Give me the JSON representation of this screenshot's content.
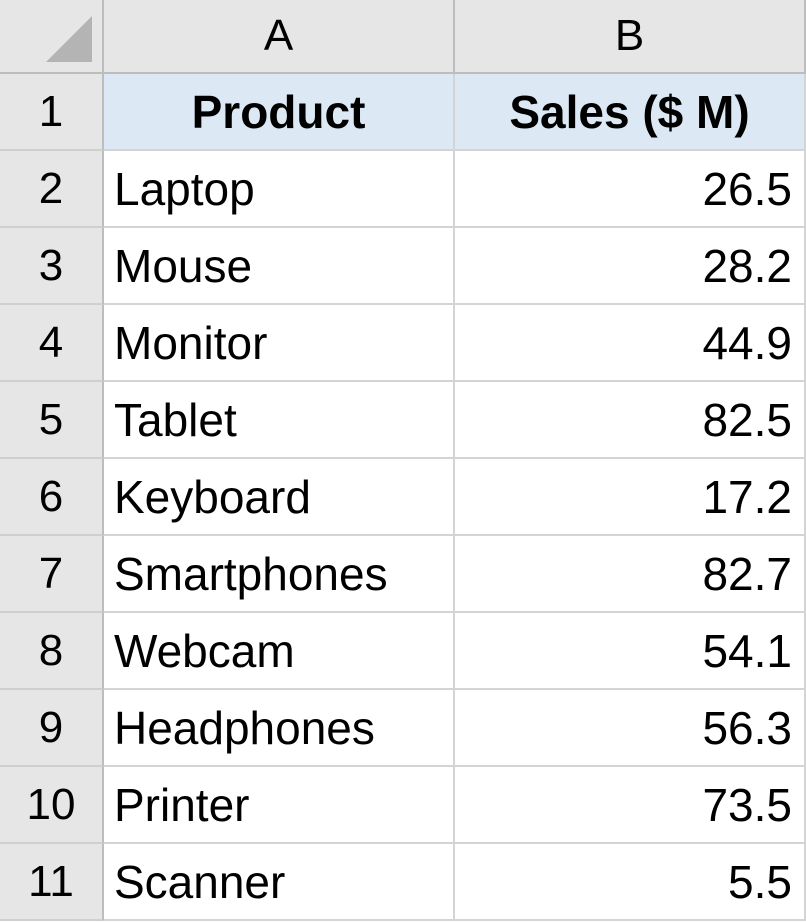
{
  "columns": [
    "A",
    "B"
  ],
  "header_row": {
    "row_number": "1",
    "product_label": "Product",
    "sales_label": "Sales ($ M)"
  },
  "rows": [
    {
      "row_number": "2",
      "product": "Laptop",
      "sales": "26.5"
    },
    {
      "row_number": "3",
      "product": "Mouse",
      "sales": "28.2"
    },
    {
      "row_number": "4",
      "product": "Monitor",
      "sales": "44.9"
    },
    {
      "row_number": "5",
      "product": "Tablet",
      "sales": "82.5"
    },
    {
      "row_number": "6",
      "product": "Keyboard",
      "sales": "17.2"
    },
    {
      "row_number": "7",
      "product": "Smartphones",
      "sales": "82.7"
    },
    {
      "row_number": "8",
      "product": "Webcam",
      "sales": "54.1"
    },
    {
      "row_number": "9",
      "product": "Headphones",
      "sales": "56.3"
    },
    {
      "row_number": "10",
      "product": "Printer",
      "sales": "73.5"
    },
    {
      "row_number": "11",
      "product": "Scanner",
      "sales": "5.5"
    }
  ],
  "colors": {
    "header_fill": "#dce9f5",
    "gridline": "#d4d4d4",
    "row_col_header_bg": "#e6e6e6"
  }
}
